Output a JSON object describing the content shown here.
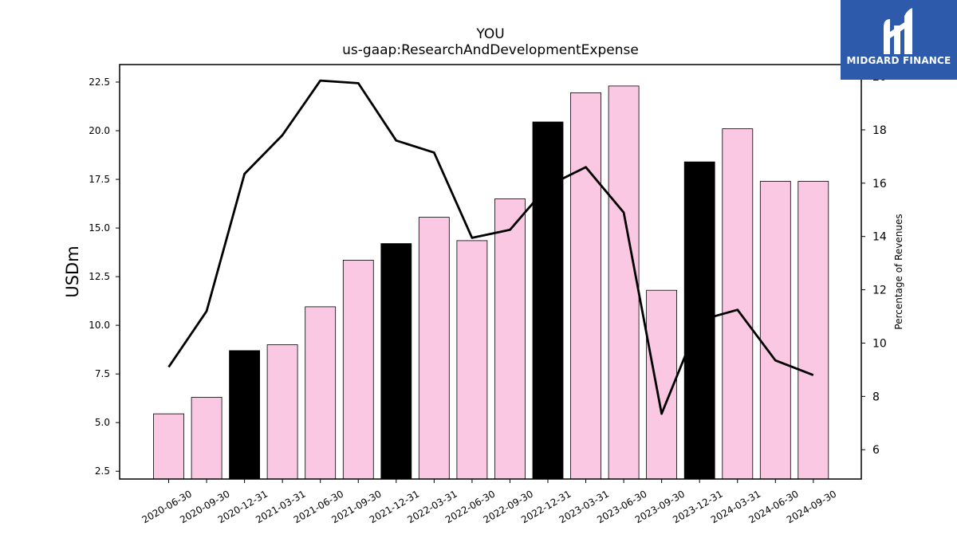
{
  "chart_data": {
    "type": "bar",
    "title": "YOU",
    "subtitle": "us-gaap:ResearchAndDevelopmentExpense",
    "ylabel": "USDm",
    "ylabel_right": "Percentage of Revenues",
    "categories": [
      "2020-06-30",
      "2020-09-30",
      "2020-12-31",
      "2021-03-31",
      "2021-06-30",
      "2021-09-30",
      "2021-12-31",
      "2022-03-31",
      "2022-06-30",
      "2022-09-30",
      "2022-12-31",
      "2023-03-31",
      "2023-06-30",
      "2023-09-30",
      "2023-12-31",
      "2024-03-31",
      "2024-06-30",
      "2024-09-30"
    ],
    "series": [
      {
        "values": [
          5.45,
          6.3,
          8.7,
          9.0,
          10.95,
          13.35,
          14.2,
          15.55,
          14.35,
          16.5,
          20.45,
          21.95,
          22.3,
          11.8,
          18.4,
          20.1,
          17.4,
          17.4
        ],
        "highlight": [
          false,
          false,
          true,
          false,
          false,
          false,
          true,
          false,
          false,
          false,
          true,
          false,
          false,
          false,
          true,
          false,
          false,
          false
        ],
        "colors": {
          "normal": "#fbc8e3",
          "highlight": "#000000"
        }
      },
      {
        "axis": "right",
        "type": "line",
        "color": "#000000",
        "values": [
          9.1,
          11.2,
          16.35,
          17.8,
          19.85,
          19.75,
          17.6,
          17.15,
          13.95,
          14.25,
          15.9,
          16.6,
          14.9,
          7.35,
          10.85,
          11.25,
          9.35,
          8.8
        ]
      }
    ],
    "ylim": [
      2.1,
      23.4
    ],
    "yticks": [
      2.5,
      5.0,
      7.5,
      10.0,
      12.5,
      15.0,
      17.5,
      20.0,
      22.5
    ],
    "ylim_right": [
      4.9,
      20.45
    ],
    "yticks_right": [
      6,
      8,
      10,
      12,
      14,
      16,
      18,
      20
    ],
    "grid": false
  },
  "logo": {
    "text": "MIDGARD FINANCE",
    "color": "#2d5aab"
  }
}
